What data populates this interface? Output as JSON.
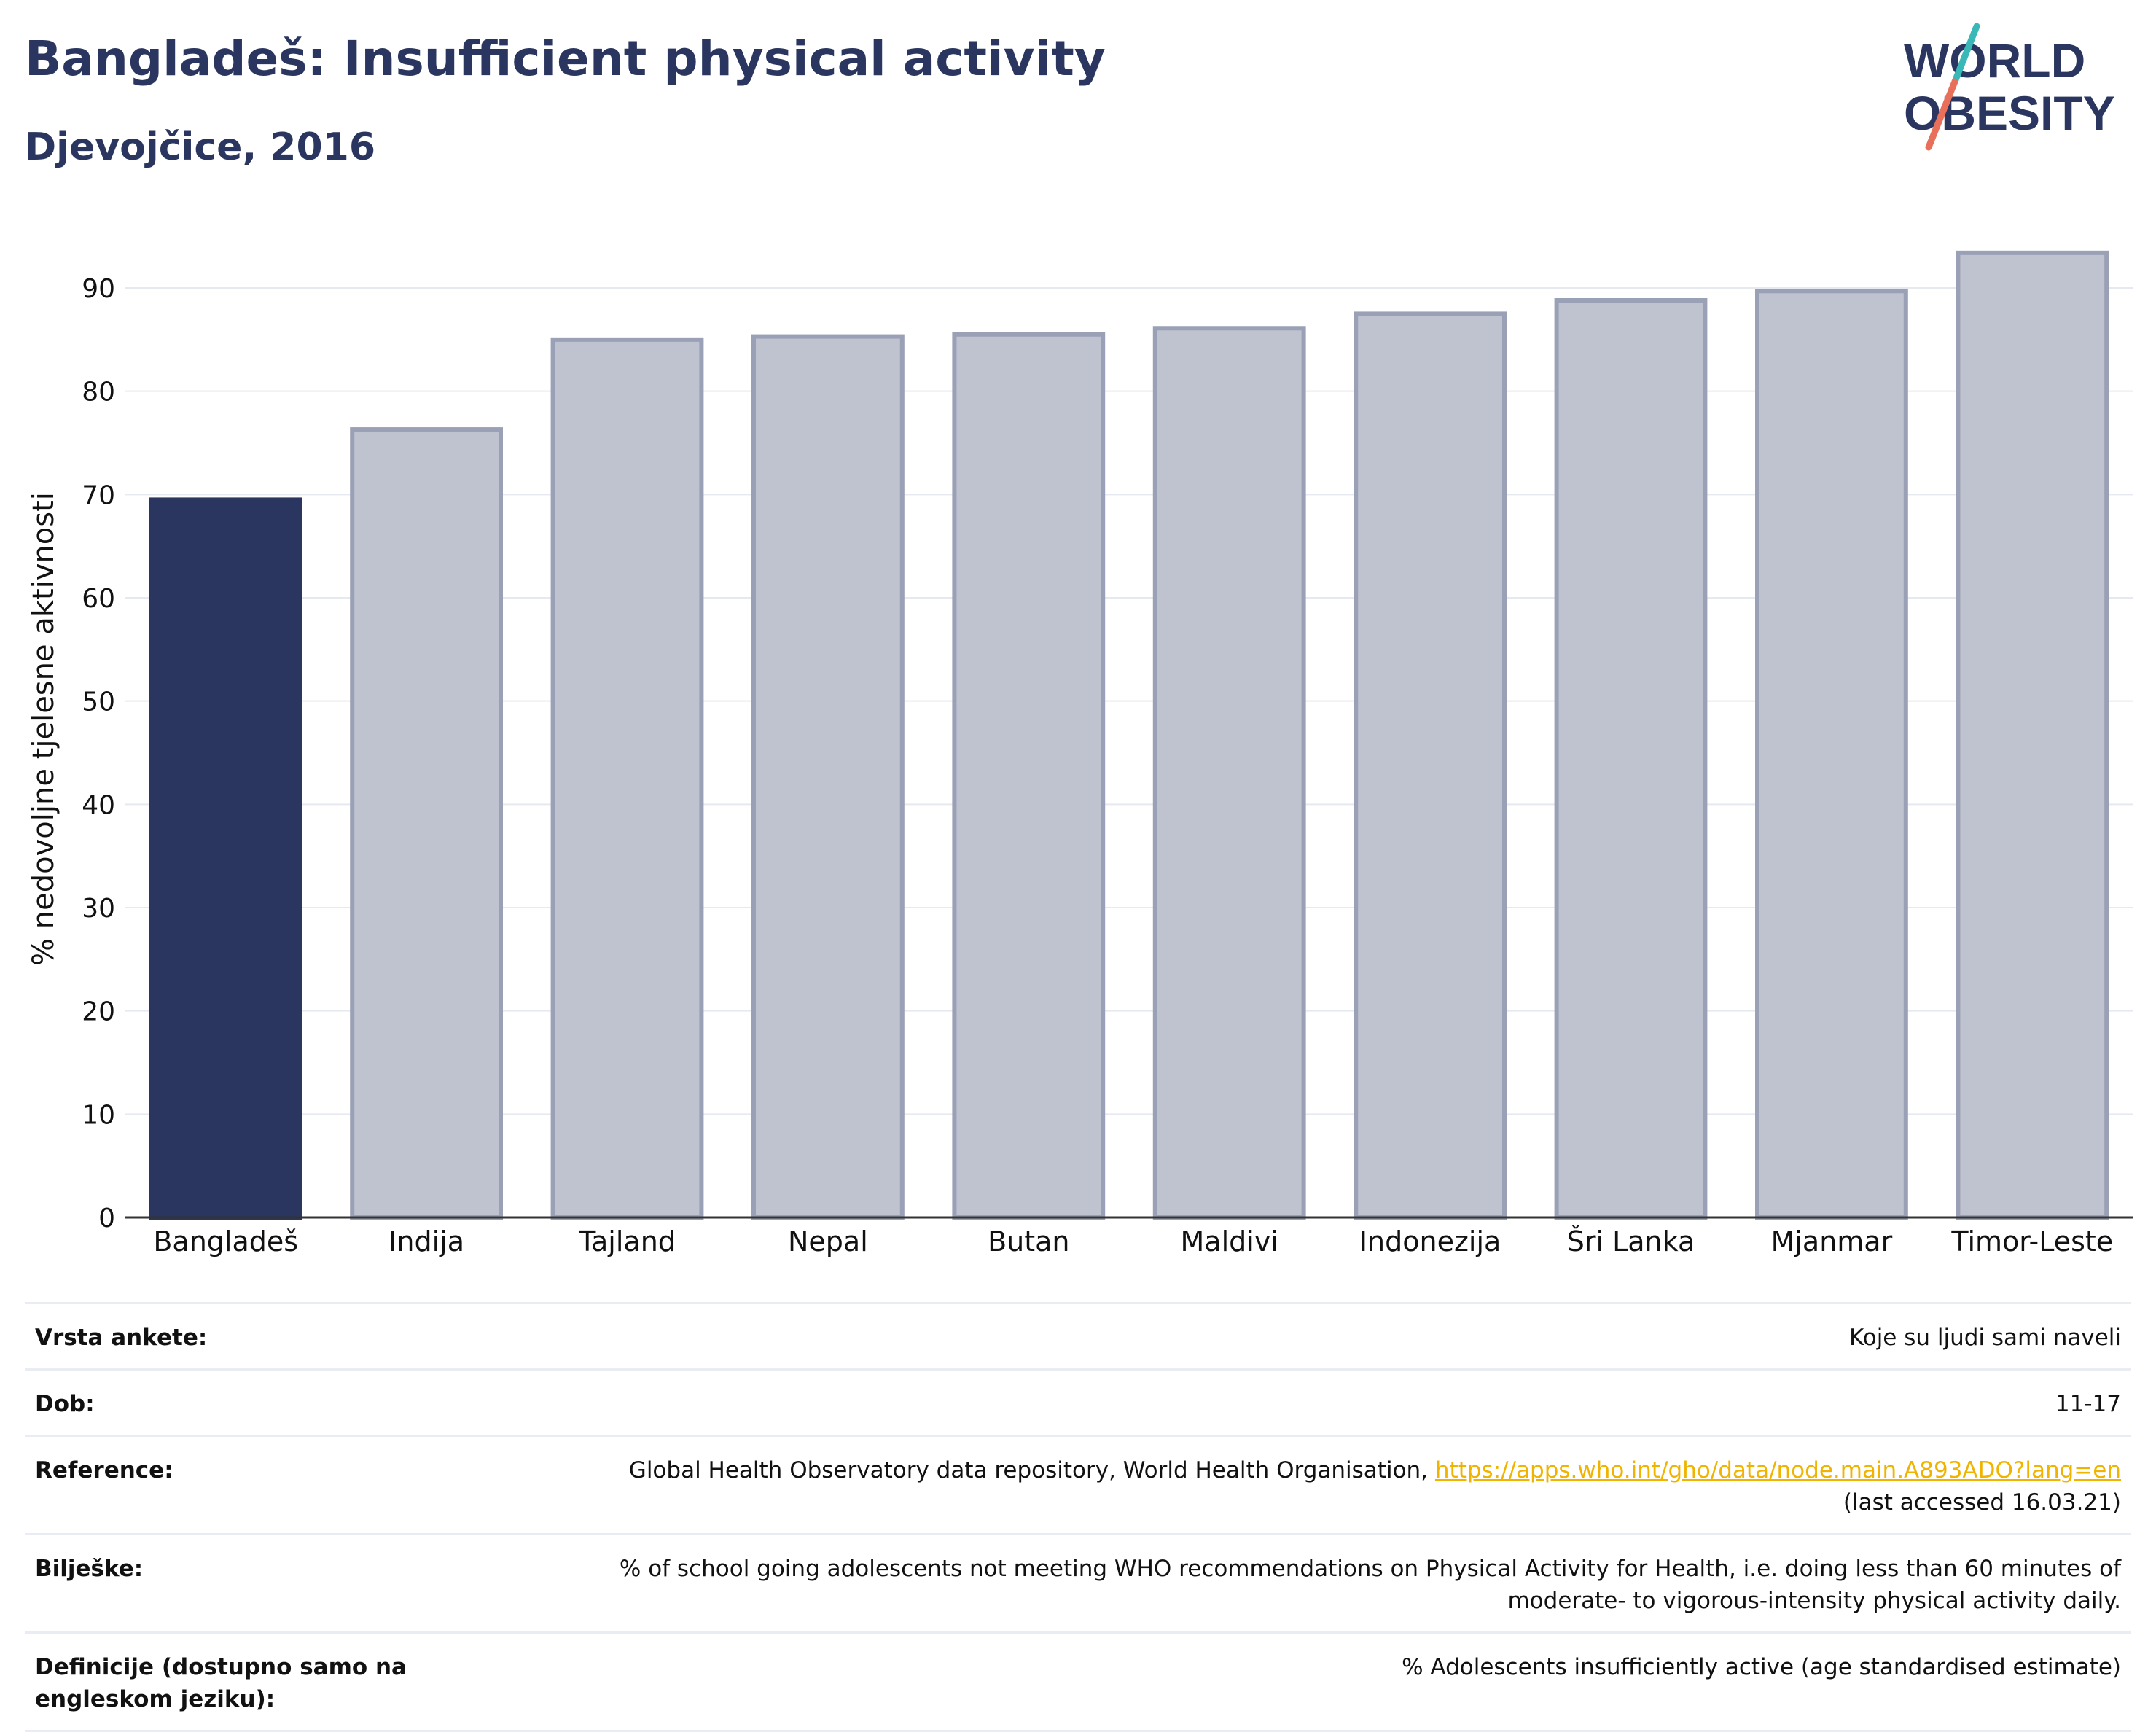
{
  "header": {
    "title": "Bangladeš: Insufficient physical activity",
    "subtitle": "Djevojčice, 2016"
  },
  "logo": {
    "line1": "WORLD",
    "line2": "OBESITY",
    "colors": {
      "text": "#2a365f",
      "slash_top": "#3ab8b8",
      "slash_bottom": "#e8705a"
    }
  },
  "colors": {
    "highlight": "#2a365f",
    "bar": "#bfc3cf",
    "bar_border": "#9aa0b5",
    "grid": "#e6e9ef",
    "axis": "#333333",
    "link": "#f0b400"
  },
  "chart_data": {
    "type": "bar",
    "categories": [
      "Bangladeš",
      "Indija",
      "Tajland",
      "Nepal",
      "Butan",
      "Maldivi",
      "Indonezija",
      "Šri Lanka",
      "Mjanmar",
      "Timor-Leste"
    ],
    "values": [
      69.5,
      76.3,
      85.0,
      85.3,
      85.5,
      86.1,
      87.5,
      88.8,
      89.7,
      93.4
    ],
    "highlight_index": 0,
    "ylabel": "% nedovoljne tjelesne aktivnosti",
    "ylim": [
      0,
      96
    ],
    "yticks": [
      0,
      10,
      20,
      30,
      40,
      50,
      60,
      70,
      80,
      90
    ],
    "grid": true
  },
  "info": [
    {
      "key": "Vrsta ankete:",
      "value": "Koje su ljudi sami naveli"
    },
    {
      "key": "Dob:",
      "value": "11-17"
    },
    {
      "key": "Reference:",
      "value": "Global Health Observatory data repository, World Health Organisation,",
      "link": "https://apps.who.int/gho/data/node.main.A893ADO?lang=en",
      "extra": "(last accessed 16.03.21)"
    },
    {
      "key": "Bilješke:",
      "value": "% of school going adolescents not meeting WHO recommendations on Physical Activity for Health, i.e. doing less than 60 minutes of moderate- to vigorous-intensity physical activity daily."
    },
    {
      "key": "Definicije (dostupno samo na engleskom jeziku):",
      "value": "% Adolescents insufficiently active (age standardised estimate)"
    }
  ]
}
